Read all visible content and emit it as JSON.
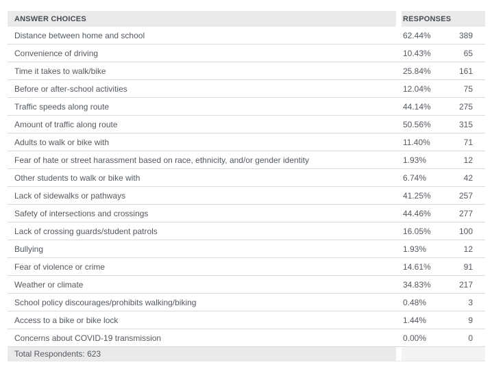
{
  "table": {
    "columns": {
      "answer": "ANSWER CHOICES",
      "responses": "RESPONSES"
    },
    "rows": [
      {
        "label": "Distance between home and school",
        "percent": "62.44%",
        "count": "389"
      },
      {
        "label": "Convenience of driving",
        "percent": "10.43%",
        "count": "65"
      },
      {
        "label": "Time it takes to walk/bike",
        "percent": "25.84%",
        "count": "161"
      },
      {
        "label": "Before or after-school activities",
        "percent": "12.04%",
        "count": "75"
      },
      {
        "label": "Traffic speeds along route",
        "percent": "44.14%",
        "count": "275"
      },
      {
        "label": "Amount of traffic along route",
        "percent": "50.56%",
        "count": "315"
      },
      {
        "label": "Adults to walk or bike with",
        "percent": "11.40%",
        "count": "71"
      },
      {
        "label": "Fear of hate or street harassment based on race, ethnicity, and/or gender identity",
        "percent": "1.93%",
        "count": "12"
      },
      {
        "label": "Other students to walk or bike with",
        "percent": "6.74%",
        "count": "42"
      },
      {
        "label": "Lack of sidewalks or pathways",
        "percent": "41.25%",
        "count": "257"
      },
      {
        "label": "Safety of intersections and crossings",
        "percent": "44.46%",
        "count": "277"
      },
      {
        "label": "Lack of crossing guards/student patrols",
        "percent": "16.05%",
        "count": "100"
      },
      {
        "label": "Bullying",
        "percent": "1.93%",
        "count": "12"
      },
      {
        "label": "Fear of violence or crime",
        "percent": "14.61%",
        "count": "91"
      },
      {
        "label": "Weather or climate",
        "percent": "34.83%",
        "count": "217"
      },
      {
        "label": "School policy discourages/prohibits walking/biking",
        "percent": "0.48%",
        "count": "3"
      },
      {
        "label": "Access to a bike or bike lock",
        "percent": "1.44%",
        "count": "9"
      },
      {
        "label": "Concerns about COVID-19 transmission",
        "percent": "0.00%",
        "count": "0"
      }
    ],
    "total": "Total Respondents: 623"
  },
  "colors": {
    "header_bg": "#eaeaea",
    "header_text": "#474c52",
    "body_text": "#535960",
    "row_border": "#d9d9d9",
    "total_left_bg": "#eaeaea",
    "total_right_bg": "#f3f3f3",
    "table_bottom_border": "#e5e5e5"
  }
}
